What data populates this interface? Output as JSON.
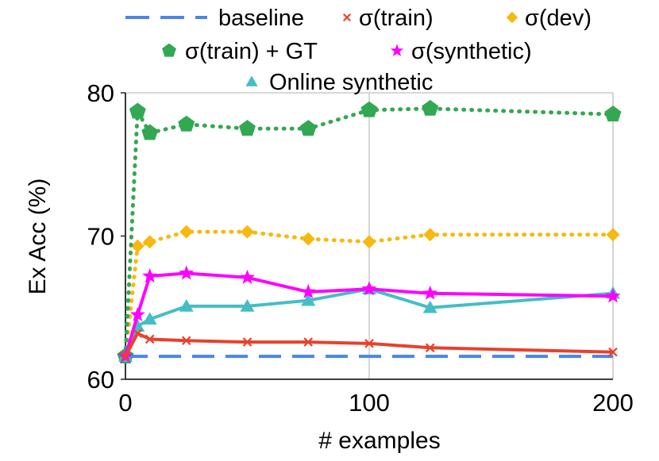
{
  "chart_data": {
    "type": "line",
    "title": "",
    "xlabel": "# examples",
    "ylabel": "Ex Acc (%)",
    "xlim": [
      0,
      200
    ],
    "ylim": [
      60,
      80
    ],
    "xticks": [
      0,
      100,
      200
    ],
    "yticks": [
      60,
      70,
      80
    ],
    "grid": "vertical",
    "legend_position": "top",
    "series": [
      {
        "name": "baseline",
        "color": "#4a86e8",
        "style": "dashed",
        "marker": "none",
        "x": [
          0,
          200
        ],
        "y": [
          61.6,
          61.6
        ]
      },
      {
        "name": "σ(train)",
        "color": "#e8412c",
        "style": "solid",
        "marker": "x",
        "x": [
          0,
          5,
          10,
          25,
          50,
          75,
          100,
          125,
          200
        ],
        "y": [
          61.6,
          63.2,
          62.8,
          62.7,
          62.6,
          62.6,
          62.5,
          62.2,
          61.9
        ]
      },
      {
        "name": "σ(dev)",
        "color": "#f7b90f",
        "style": "dotted",
        "marker": "diamond",
        "x": [
          0,
          5,
          10,
          25,
          50,
          75,
          100,
          125,
          200
        ],
        "y": [
          61.6,
          69.3,
          69.6,
          70.3,
          70.3,
          69.8,
          69.6,
          70.1,
          70.1
        ]
      },
      {
        "name": "σ(train) + GT",
        "color": "#33a853",
        "style": "dotted",
        "marker": "pentagon",
        "x": [
          0,
          5,
          10,
          25,
          50,
          75,
          100,
          125,
          200
        ],
        "y": [
          61.6,
          78.7,
          77.2,
          77.8,
          77.5,
          77.5,
          78.8,
          78.9,
          78.5
        ]
      },
      {
        "name": "σ(synthetic)",
        "color": "#ff00ff",
        "style": "solid",
        "marker": "star",
        "x": [
          0,
          5,
          10,
          25,
          50,
          75,
          100,
          125,
          200
        ],
        "y": [
          61.6,
          64.5,
          67.2,
          67.4,
          67.1,
          66.1,
          66.3,
          66.0,
          65.8
        ]
      },
      {
        "name": "Online synthetic",
        "color": "#46bdc6",
        "style": "solid",
        "marker": "triangle",
        "x": [
          0,
          5,
          10,
          25,
          50,
          75,
          100,
          125,
          200
        ],
        "y": [
          61.6,
          63.7,
          64.2,
          65.1,
          65.1,
          65.5,
          66.3,
          65.0,
          66.0
        ]
      }
    ]
  }
}
